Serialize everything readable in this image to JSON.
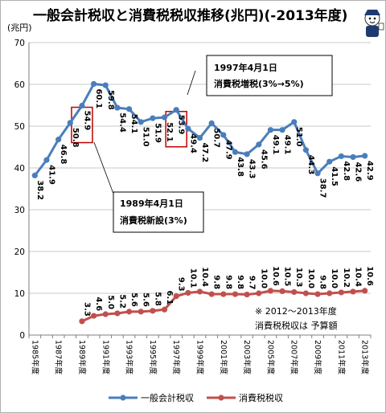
{
  "chart_data": {
    "type": "line",
    "title": "一般会計税収と消費税税収推移(兆円)(-2013年度)",
    "unit_label": "(兆円)",
    "ylim": [
      0,
      70
    ],
    "yticks": [
      "0",
      "10",
      "20",
      "30",
      "40",
      "50",
      "60",
      "70"
    ],
    "grid": true,
    "legend_position": "bottom",
    "x": [
      "1985年度",
      "1986年度",
      "1987年度",
      "1988年度",
      "1989年度",
      "1990年度",
      "1991年度",
      "1992年度",
      "1993年度",
      "1994年度",
      "1995年度",
      "1996年度",
      "1997年度",
      "1998年度",
      "1999年度",
      "2000年度",
      "2001年度",
      "2002年度",
      "2003年度",
      "2004年度",
      "2005年度",
      "2006年度",
      "2007年度",
      "2008年度",
      "2009年度",
      "2010年度",
      "2011年度",
      "2012年度",
      "2013年度"
    ],
    "x_tick_labels": [
      "1985年度",
      "1987年度",
      "1989年度",
      "1991年度",
      "1993年度",
      "1995年度",
      "1997年度",
      "1999年度",
      "2001年度",
      "2003年度",
      "2005年度",
      "2007年度",
      "2009年度",
      "2011年度",
      "2013年度"
    ],
    "series": [
      {
        "name": "一般会計税収",
        "color": "#4a7ebb",
        "values": [
          38.2,
          41.9,
          46.8,
          50.8,
          54.9,
          60.1,
          59.8,
          54.4,
          54.1,
          51.0,
          51.9,
          52.1,
          53.9,
          49.4,
          47.2,
          50.7,
          47.9,
          43.8,
          43.3,
          45.6,
          49.1,
          49.1,
          51.0,
          44.3,
          38.7,
          41.5,
          42.8,
          42.6,
          42.9
        ],
        "labels": [
          "38.2",
          "41.9",
          "46.8",
          "50.8",
          "54.9",
          "60.1",
          "59.8",
          "54.4",
          "54.1",
          "51.0",
          "51.9",
          "52.1",
          "53.9",
          "49.4",
          "47.2",
          "50.7",
          "47.9",
          "43.8",
          "43.3",
          "45.6",
          "49.1",
          "49.1",
          "51.0",
          "44.3",
          "38.7",
          "41.5",
          "42.8",
          "42.6",
          "42.9"
        ]
      },
      {
        "name": "消費税税収",
        "color": "#c0504d",
        "values": [
          null,
          null,
          null,
          null,
          3.3,
          4.6,
          5.0,
          5.2,
          5.6,
          5.6,
          5.8,
          6.1,
          9.3,
          10.1,
          10.4,
          9.8,
          9.8,
          9.8,
          9.7,
          10.0,
          10.6,
          10.5,
          10.3,
          10.0,
          9.8,
          10.0,
          10.2,
          10.4,
          10.6
        ],
        "labels": [
          null,
          null,
          null,
          null,
          "3.3",
          "4.6",
          "5.0",
          "5.2",
          "5.6",
          "5.6",
          "5.8",
          "6.1",
          "9.3",
          "10.1",
          "10.4",
          "9.8",
          "9.8",
          "9.8",
          "9.7",
          "10.0",
          "10.6",
          "10.5",
          "10.3",
          "10.0",
          "9.8",
          "10.0",
          "10.2",
          "10.4",
          "10.6"
        ]
      }
    ],
    "annotations": [
      {
        "lines": [
          "1997年4月1日",
          "消費税増税(3%→5%)"
        ]
      },
      {
        "lines": [
          "1989年4月1日",
          "消費税新設(3%)"
        ]
      },
      {
        "lines": [
          "※ 2012～2013年度",
          "消費税税収は 予算額"
        ]
      }
    ],
    "highlight_boxes": [
      "1989年度",
      "1997年度"
    ],
    "colors": {
      "grid": "#c8c8c8",
      "axis": "#7f7f7f",
      "highlight": "#c00000"
    }
  }
}
